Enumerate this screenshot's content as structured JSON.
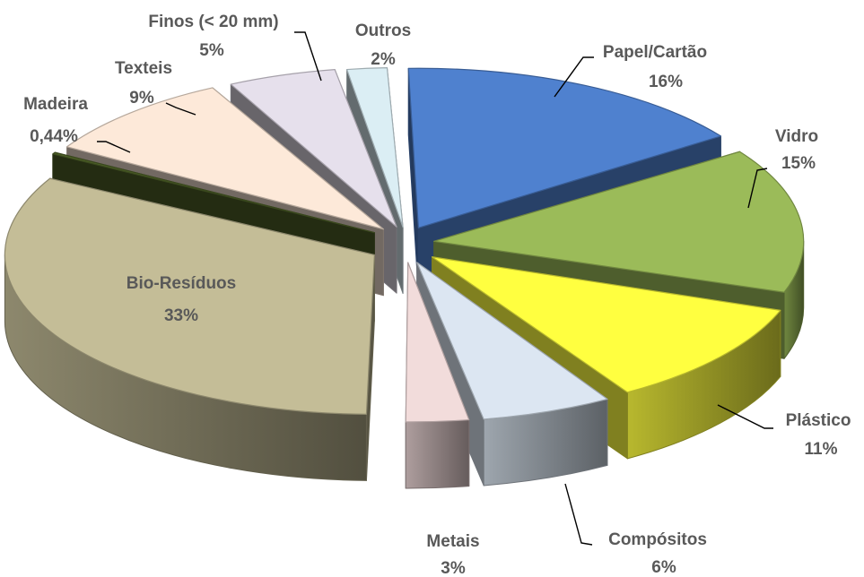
{
  "chart_data": {
    "type": "pie",
    "style": "3d-exploded",
    "legend": "none",
    "slices": [
      {
        "name": "Papel/Cartão",
        "value": 16,
        "label": "16%",
        "color": "#4f81cf"
      },
      {
        "name": "Vidro",
        "value": 15,
        "label": "15%",
        "color": "#9bbb59"
      },
      {
        "name": "Plástico",
        "value": 11,
        "label": "11%",
        "color": "#ffff40"
      },
      {
        "name": "Compósitos",
        "value": 6,
        "label": "6%",
        "color": "#dce6f2"
      },
      {
        "name": "Metais",
        "value": 3,
        "label": "3%",
        "color": "#f2dcdb"
      },
      {
        "name": "Bio-Resíduos",
        "value": 33,
        "label": "33%",
        "color": "#c4bd97"
      },
      {
        "name": "Madeira",
        "value": 0.44,
        "label": "0,44%",
        "color": "#4f6228"
      },
      {
        "name": "Texteis",
        "value": 9,
        "label": "9%",
        "color": "#fde9d9"
      },
      {
        "name": "Finos (< 20 mm)",
        "value": 5,
        "label": "5%",
        "color": "#e6e0ec"
      },
      {
        "name": "Outros",
        "value": 2,
        "label": "2%",
        "color": "#dbeef4"
      }
    ]
  }
}
